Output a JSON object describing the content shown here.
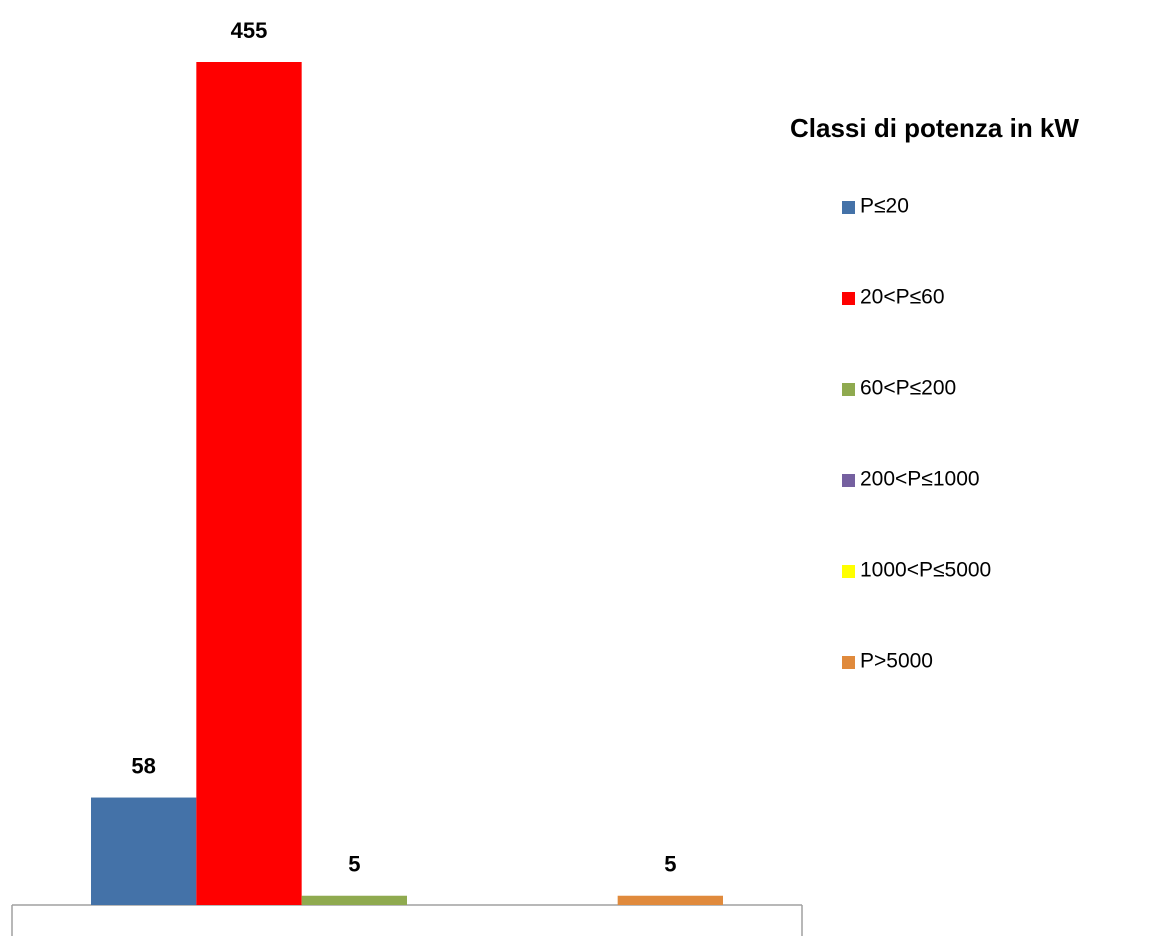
{
  "chart_data": {
    "type": "bar",
    "legend_title": "Classi di potenza in kW",
    "categories": [
      null
    ],
    "series": [
      {
        "name": "P≤20",
        "color": "#4472a8",
        "values": [
          58
        ]
      },
      {
        "name": "20<P≤60",
        "color": "#ff0000",
        "values": [
          455
        ]
      },
      {
        "name": "60<P≤200",
        "color": "#8faa4f",
        "values": [
          5
        ]
      },
      {
        "name": "200<P≤1000",
        "color": "#7560a0",
        "values": [
          null
        ]
      },
      {
        "name": "1000<P≤5000",
        "color": "#ffff00",
        "values": [
          null
        ]
      },
      {
        "name": "P>5000",
        "color": "#e08a3c",
        "values": [
          5
        ]
      }
    ],
    "ylim": [
      0,
      455
    ],
    "legend": "right"
  }
}
